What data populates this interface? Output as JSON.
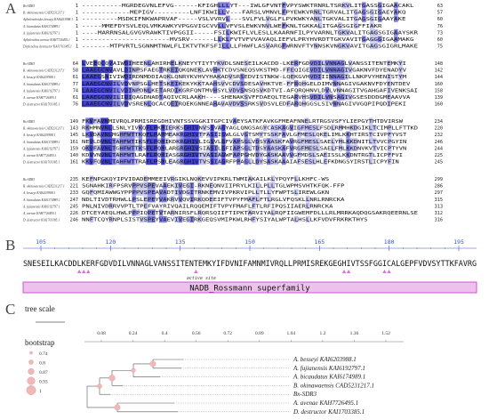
{
  "panels": {
    "a": "A",
    "b": "B",
    "c": "C"
  },
  "colors": {
    "aln_dark": "#3f3fd0",
    "aln_mid": "#7f7fe4",
    "aln_light": "#c4c4f2",
    "magenta": "#cc33cc",
    "domain_fill": "#ecc2ec",
    "node_pink": "#f2b8b8"
  },
  "alignment": {
    "blocks": [
      {
        "rows": [
          {
            "name": "Bs-SDR3",
            "start": "1",
            "seq": "----------MGRDEGVNLEFVG------KFIGHLLLYT---IWLGFVNTFVPYSWKTRNRLTSRKVLITGASSGIGAACAKL",
            "end": "63"
          },
          {
            "name": "B. okinawaensis CAD5231217.1",
            "start": "1",
            "seq": "------------MEPIGV---------LNFIKWILLV---FARSLVMNVLFPYEWKVRNLTGRVALITGAGSGIGAEYAKQ",
            "end": "57"
          },
          {
            "name": "Aphelenchoides besseyi KAI6203988.1",
            "start": "1",
            "seq": "---------MSDKIFNKWAPRVAF-----VSLVVRVL---SVLFVLVGLFLPVKWKYANLTGKVALITGAGSGIGAAYAKE",
            "end": "60"
          },
          {
            "name": "A. bicaudatus KAI6174989.1",
            "start": "1",
            "seq": "-----MMEFDYSVLEQLVMKAWKYVPGGVIGCVVLLVFVSLEWKVNVLWEFKNLTGKKALITGAGSGIGFFIAKR",
            "end": "76"
          },
          {
            "name": "A. fujianensis KAI6192797.1",
            "start": "1",
            "seq": "----MARRNSALGVGVRAWKTIVPGGII-----FSILKWIFLVLESLLKAARNFILPYVARNLTGKVALITGAGSGIGAAYSKR",
            "end": "73"
          },
          {
            "name": "Aphelenchus avenae KAH7726495.1",
            "start": "1",
            "seq": "----------------------MVSRV------LLKLFVTVFVVAVAQLIEFVLPRYHVRDTTGKVAVITGAGGGIGAAMAKG",
            "end": "60"
          },
          {
            "name": "Ditylenchus destructor KAI1703385.1",
            "start": "1",
            "seq": "-------MTPVRTLSGNNMTNWLFLIKTVTKFSFILLLLFHWFLASVARGFWRNVFTYNNSKVNGKVAVITGAGSGIGRLMAKE",
            "end": "75"
          }
        ]
      },
      {
        "rows": [
          {
            "name": "Bs-SDR3",
            "start": "64",
            "seq": "LVEEQCQVAIWDIHEENLAHIRHELKNEYYTIYTYKVDLSNESEILKACDD-LKERFGDVDILVNNAGLVANSSITENTEMKYI",
            "end": "148"
          },
          {
            "name": "B. okinawaensis CAD5231217.1",
            "start": "58",
            "seq": "LAAEGCNVAVLDINPSFAEGTRKEIQKQNEKLAVHKTCDVSNEQSVKSTMD-FFEQIGEVDILVNNAGIVGAKNVFDYENADYV",
            "end": "142"
          },
          {
            "name": "A. besseyi KAI6203988.1",
            "start": "61",
            "seq": "LAAEGSNIVIWDIRDNMDDIAQKLQNRYKVHVYHAKADVSRSEDVISTNKW-LQEKGVHVDIIINNAGILLNKPVYHENISTYM",
            "end": "144"
          },
          {
            "name": "A. bicaudatus KAI6174989.1",
            "start": "77",
            "seq": "LAAEGCNVILVDVNPSGLHETSKEIKEKYKKTAAHSVVCDVSDESAVHKTVE-FFRQHGELDIMVNNAGIVGAKNVFDYENTDEV",
            "end": "160"
          },
          {
            "name": "A. fujianensis KAI6192797.1",
            "start": "74",
            "seq": "LAAEGCNVILVDINPDNLKETARDIKGRFQNTMVHSYLVDVSNSQSVKDTVI-AFQRQHNVLDVLVNNAGITVGAHGAFIVENKSAI",
            "end": "158"
          },
          {
            "name": "A. avenae KAH7726495.1",
            "start": "61",
            "seq": "LAAEGCNVILIDIQAGDNADTAQIVCRLAAKH----SHENAKSVFFDAEQLTEGARVHSVDILVNSAGIVGSESDDDGMEAAVVA",
            "end": "139"
          },
          {
            "name": "D. destructor KAI1703385.1",
            "start": "76",
            "seq": "LAAEGCNVILVDVSRENLQCACQEIRQEKGNNEAHAVAVDVSSRKSVDSVLEDFARQHGGSLSIVNNAGIVVGQPIPQDIPEKI",
            "end": "160"
          }
        ]
      },
      {
        "rows": [
          {
            "name": "Bs-SDR3",
            "start": "149",
            "seq": "FKVFAVNMIVRQLPRMISREGDHIVNTSSVGGKITGPCIVAEYSATKFAVKGFMEAFNNELRTRGSVSFYLIEPGYTHTDVIRSW",
            "end": "234"
          },
          {
            "name": "B. okinawaensis CAD5231217.1",
            "start": "143",
            "seq": "RKHMNVNLLSNLYIVKQFLPKMIERKSGHIVNVSSVAGYAGLQNGSAGYCASKAGVIGFMESLFSDLRMMHKDGIKLTCIMPLLFTTKD",
            "end": "220"
          },
          {
            "name": "A. besseyi KAI6203988.1",
            "start": "145",
            "seq": "LKVDAVNLMGHFWTTKQFLPAMMEAKRGHIVTFASIIGWLGLVGTSMYTSSKFAVLGFMESLQKELIMLKKHTIRSTCIVPFYVST",
            "end": "232"
          },
          {
            "name": "A. bicaudatus KAI6174989.1",
            "start": "161",
            "seq": "NEVLDVNLTAHFWTIKSFLPQMIKDKRGHIVLIGSVLGFVAPSGLVDSYAASKFAVRGFMESLSAELYMLKKDNITLTVVCPGYIN",
            "end": "246"
          },
          {
            "name": "A. fujianensis KAI6192797.1",
            "start": "159",
            "seq": "QKVFAVNLTGHFWTTKSFLPQMLARGRGHIVSIASILGFIAPSGLTDSYAASKAFVRGFMESLSAELFMLKKDNVKVTVICPTYVN",
            "end": "244"
          },
          {
            "name": "A. avenae KAH7726495.1",
            "start": "140",
            "seq": "KDVVNVNLTAHFWTLRAFLPQMIASGRGHIVTVASIAGWFAPPGHVDYGASKAAVVGFMDSLSAEISSLKKDNTRGTLICPFFVI",
            "end": "225"
          },
          {
            "name": "D. destructor KAI1703385.1",
            "start": "161",
            "seq": "KKVFQVNLTAHFWTTRAFLPSMLEAGRGHIVTVSSIAGRFPPAGLLDYSASKAAAIAFSESLHLEFKDNGSYIRSTLICPYFIN",
            "end": "245"
          }
        ]
      },
      {
        "rows": [
          {
            "name": "Bs-SDR3",
            "start": "235",
            "seq": "KEFNPGKQYIPVIDADEMMEEIVRGIKLNQKEVVIPKRLTWMIAKAILKLYPQYFLLKHFC-WS",
            "end": "299"
          },
          {
            "name": "B. okinawaensis CAD5231217.1",
            "start": "221",
            "seq": "SGNAHKIRFPSRVPPVSPEVAAEKIVEGI-RKNEQNVIIPRYLKILLPLLTGLWPMSVHTKFQK-FFP",
            "end": "286"
          },
          {
            "name": "A. besseyi KAI6203988.1",
            "start": "233",
            "seq": "GQFQMIAWWGYPPPPVSPEAVADTIVDGITRNKEMVIVPKRVIPLLTLLYFWPTSLIREWLGKN",
            "end": "297"
          },
          {
            "name": "A. bicaudatus KAI6174989.1",
            "start": "247",
            "seq": "NDLTIVDTRHWLLPSLEPEYVAKRVVQVIRKQDEEIFTVPYFMAFLFTLRGLVFQSKLLNRLRNRCKA",
            "end": "315"
          },
          {
            "name": "A. fujianensis KAI6192797.1",
            "start": "245",
            "seq": "PNLNIVDRRVVPTLTPEFVAYRIVQAILRQQEMIFTVPYFMAFLFTLRFIPQSIIAERLRNRCKA",
            "end": "313"
          },
          {
            "name": "A. avenae KAH7726495.1",
            "start": "226",
            "seq": "DTCEYAEQLHWLPPPIQPETVTARNIRSFLRQRSQIIFTIPKTARVIYALRQFIIGWEMFDLLLRLMRRKAQDQGSAKRQEERNLSE",
            "end": "312"
          },
          {
            "name": "D. destructor KAI1703385.1",
            "start": "246",
            "seq": "NNFTCQYRNPLSISTVSPEYVAEVIVEGIRKGEQSVMIPKWLRHFYSIYALWPTALHSLLKFVDVFRKRKTHYS",
            "end": "316"
          }
        ]
      }
    ]
  },
  "domain_view": {
    "ruler": [
      "105",
      "120",
      "135",
      "150",
      "165",
      "180",
      "195"
    ],
    "sequence": "SNESEILKACDDLKERFGDVDILVNNAGLVANSSITENTEMKYIFDVNIFAMNMIVRQLLPRMISREKGEGHIVTSSFGGICALGEPFVDVSYTTKFAVRG",
    "active_site_label": "active site",
    "superfamily_label": "NADB_Rossmann superfamily"
  },
  "tree": {
    "scale_label": "tree scale",
    "bootstrap_title": "bootstrap",
    "bootstrap_values": [
      "0.74",
      "0.8",
      "0.87",
      "0.93",
      "1"
    ],
    "axis_ticks": [
      "0.08",
      "0.24",
      "0.4",
      "0.56",
      "0.72",
      "0.89",
      "1.04",
      "1.2",
      "1.36",
      "1.52"
    ],
    "leaves": [
      "A. besseyi KAI6203988.1",
      "A. fujianensis KAI6192797.1",
      "A. bicaudatus KAI6174989.1",
      "B. okinawaensis CAD5231217.1",
      "Bx-SDR3",
      "A. avenae KAH7726495.1",
      "D. destructor KAI1703385.1"
    ]
  }
}
